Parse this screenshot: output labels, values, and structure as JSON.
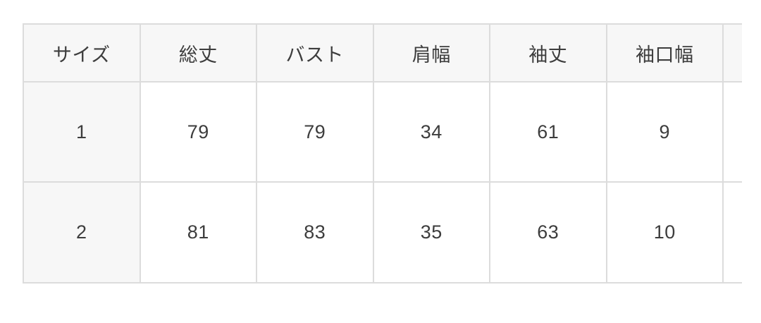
{
  "size_chart": {
    "headers": [
      "サイズ",
      "総丈",
      "バスト",
      "肩幅",
      "袖丈",
      "袖口幅"
    ],
    "overflow_header": "",
    "rows": [
      {
        "cells": [
          "1",
          "79",
          "79",
          "34",
          "61",
          "9"
        ]
      },
      {
        "cells": [
          "2",
          "81",
          "83",
          "35",
          "63",
          "10"
        ]
      }
    ]
  },
  "colors": {
    "header_bg": "#f7f7f7",
    "border": "#dcdcdc",
    "text": "#3d3d3d",
    "page_bg": "#ffffff"
  }
}
